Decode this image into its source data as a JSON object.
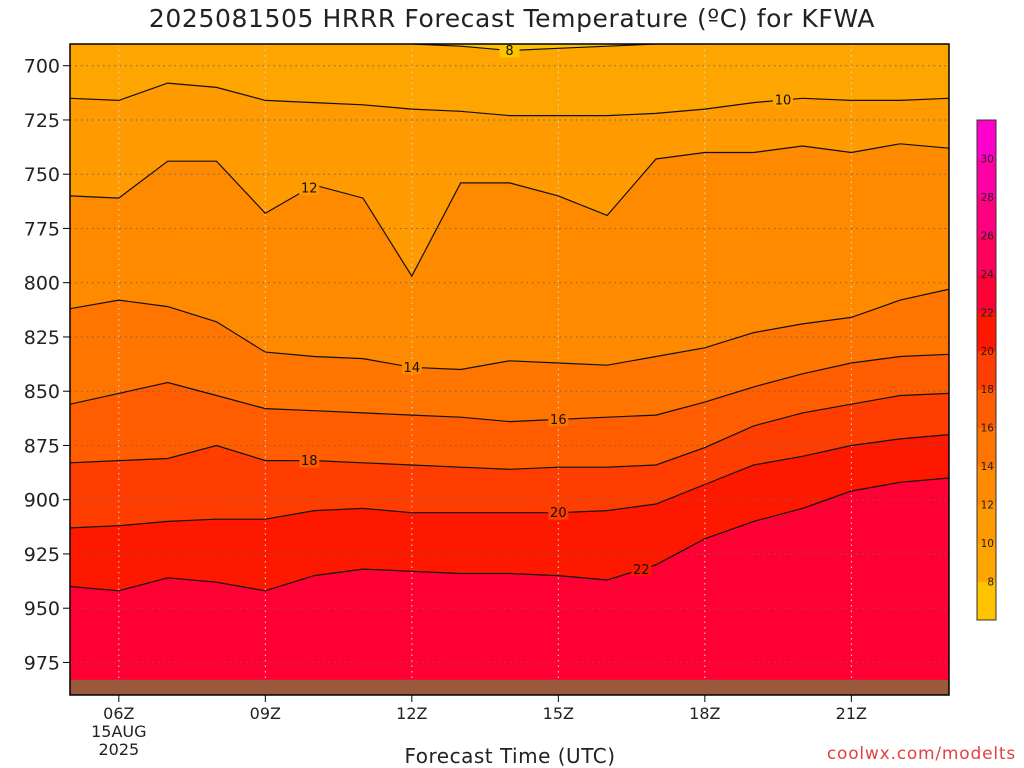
{
  "chart_data": {
    "type": "heatmap",
    "title": "2025081505 HRRR Forecast Temperature (ºC) for KFWA",
    "xlabel": "Forecast Time (UTC)",
    "ylabel": "",
    "credit": "coolwx.com/modelts",
    "date_labels": [
      "15AUG",
      "2025"
    ],
    "x_ticks": [
      {
        "hour": 6,
        "label": "06Z"
      },
      {
        "hour": 9,
        "label": "09Z"
      },
      {
        "hour": 12,
        "label": "12Z"
      },
      {
        "hour": 15,
        "label": "15Z"
      },
      {
        "hour": 18,
        "label": "18Z"
      },
      {
        "hour": 21,
        "label": "21Z"
      }
    ],
    "xlim": [
      5,
      23
    ],
    "y_ticks": [
      700,
      725,
      750,
      775,
      800,
      825,
      850,
      875,
      900,
      925,
      950,
      975
    ],
    "ylim": [
      690,
      990
    ],
    "y_inverted": true,
    "grid": true,
    "x": [
      5,
      6,
      7,
      8,
      9,
      10,
      11,
      12,
      13,
      14,
      15,
      16,
      17,
      18,
      19,
      20,
      21,
      22,
      23
    ],
    "surface_hpa": [
      983,
      983,
      983,
      983,
      983,
      983,
      983,
      983,
      983,
      983,
      983,
      983,
      983,
      983,
      983,
      983,
      983,
      983,
      983
    ],
    "contour_interval": 2,
    "isotherms": [
      {
        "value": 8,
        "pressure": [
          689,
          689,
          689,
          689,
          689,
          689,
          689,
          690,
          691,
          693,
          692,
          691,
          690,
          690,
          689,
          689,
          689,
          689,
          689
        ],
        "label_hour": 14.0
      },
      {
        "value": 10,
        "pressure": [
          715,
          716,
          708,
          710,
          716,
          717,
          718,
          720,
          721,
          723,
          723,
          723,
          722,
          720,
          717,
          715,
          716,
          716,
          715
        ],
        "label_hour": 19.6
      },
      {
        "value": 12,
        "pressure": [
          760,
          761,
          744,
          744,
          768,
          755,
          761,
          797,
          754,
          754,
          760,
          769,
          743,
          740,
          740,
          737,
          740,
          736,
          738
        ],
        "label_hour": 9.9
      },
      {
        "value": 14,
        "pressure": [
          812,
          808,
          811,
          818,
          832,
          834,
          835,
          839,
          840,
          836,
          837,
          838,
          834,
          830,
          823,
          819,
          816,
          808,
          803
        ],
        "label_hour": 12.0
      },
      {
        "value": 16,
        "pressure": [
          856,
          851,
          846,
          852,
          858,
          859,
          860,
          861,
          862,
          864,
          863,
          862,
          861,
          855,
          848,
          842,
          837,
          834,
          833
        ],
        "label_hour": 15.0
      },
      {
        "value": 18,
        "pressure": [
          883,
          882,
          881,
          875,
          882,
          882,
          883,
          884,
          885,
          886,
          885,
          885,
          884,
          876,
          866,
          860,
          856,
          852,
          851
        ],
        "label_hour": 9.9
      },
      {
        "value": 20,
        "pressure": [
          913,
          912,
          910,
          909,
          909,
          905,
          904,
          906,
          906,
          906,
          906,
          905,
          902,
          893,
          884,
          880,
          875,
          872,
          870
        ],
        "label_hour": 15.0
      },
      {
        "value": 22,
        "pressure": [
          940,
          942,
          936,
          938,
          942,
          935,
          932,
          933,
          934,
          934,
          935,
          937,
          930,
          918,
          910,
          904,
          896,
          892,
          890
        ],
        "label_hour": 16.7
      }
    ],
    "color_scale": {
      "min": 6,
      "max": 32,
      "step": 2,
      "tick_labels": [
        8,
        10,
        12,
        14,
        16,
        18,
        20,
        22,
        24,
        26,
        28,
        30
      ],
      "colors": [
        "#ffc400",
        "#ffa500",
        "#ff9a00",
        "#ff8a00",
        "#ff7500",
        "#ff5d00",
        "#ff3d00",
        "#ff1800",
        "#ff0035",
        "#ff005d",
        "#ff0080",
        "#ff00a5",
        "#ff00cc"
      ]
    },
    "colors": {
      "ground": "#9b5a3c",
      "contour": "#111111",
      "grid": "#666666"
    }
  }
}
